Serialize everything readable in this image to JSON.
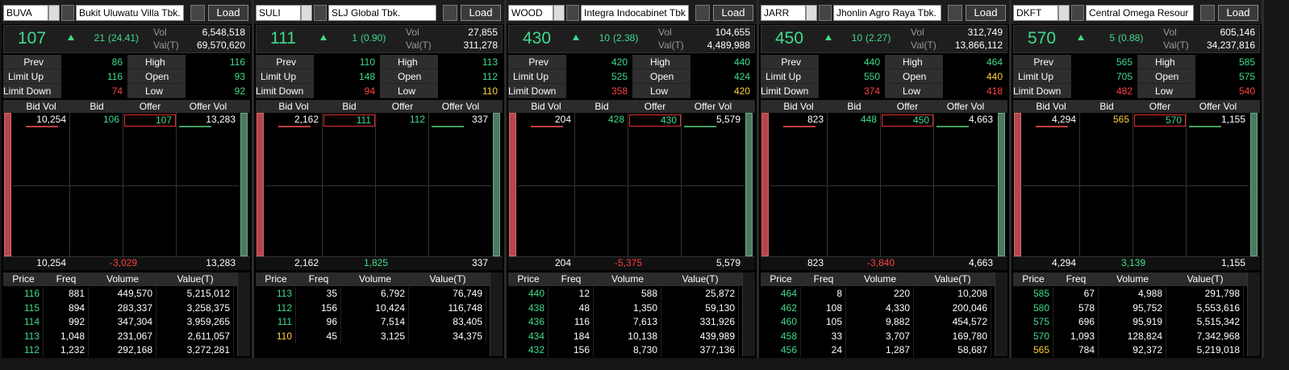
{
  "labels": {
    "load": "Load",
    "vol": "Vol",
    "val": "Val(T)",
    "prev": "Prev",
    "high": "High",
    "limit_up": "Limit Up",
    "open": "Open",
    "limit_down": "Limit Down",
    "low": "Low",
    "book_headers": [
      "Bid Vol",
      "Bid",
      "Offer",
      "Offer Vol"
    ],
    "trade_headers": [
      "Price",
      "Freq",
      "Volume",
      "Value(T)"
    ]
  },
  "panels": [
    {
      "code": "BUVA",
      "name": "Bukit Uluwatu Villa Tbk.",
      "last": "107",
      "change": "21",
      "change_pct": "(24.41)",
      "vol": "6,548,518",
      "val": "69,570,620",
      "prev": "86",
      "high": "116",
      "limit_up": "116",
      "open": "93",
      "limit_down": "74",
      "low": "92",
      "book": [
        "10,254",
        "106",
        "107",
        "13,283"
      ],
      "totals": [
        "10,254",
        "-3,029",
        "13,283"
      ],
      "trades": [
        [
          "116",
          "881",
          "449,570",
          "5,215,012"
        ],
        [
          "115",
          "894",
          "283,337",
          "3,258,375"
        ],
        [
          "114",
          "992",
          "347,304",
          "3,959,265"
        ],
        [
          "113",
          "1,048",
          "231,067",
          "2,611,057"
        ],
        [
          "112",
          "1,232",
          "292,168",
          "3,272,281"
        ]
      ]
    },
    {
      "code": "SULI",
      "name": "SLJ Global Tbk.",
      "last": "111",
      "change": "1",
      "change_pct": "(0.90)",
      "vol": "27,855",
      "val": "311,278",
      "prev": "110",
      "high": "113",
      "limit_up": "148",
      "open": "112",
      "limit_down": "94",
      "low": "110",
      "book": [
        "2,162",
        "111",
        "112",
        "337"
      ],
      "totals": [
        "2,162",
        "1,825",
        "337"
      ],
      "trades": [
        [
          "113",
          "35",
          "6,792",
          "76,749"
        ],
        [
          "112",
          "156",
          "10,424",
          "116,748"
        ],
        [
          "111",
          "96",
          "7,514",
          "83,405"
        ],
        [
          "110",
          "45",
          "3,125",
          "34,375"
        ]
      ]
    },
    {
      "code": "WOOD",
      "name": "Integra Indocabinet Tbk",
      "last": "430",
      "change": "10",
      "change_pct": "(2.38)",
      "vol": "104,655",
      "val": "4,489,988",
      "prev": "420",
      "high": "440",
      "limit_up": "525",
      "open": "424",
      "limit_down": "358",
      "low": "420",
      "book": [
        "204",
        "428",
        "430",
        "5,579"
      ],
      "totals": [
        "204",
        "-5,375",
        "5,579"
      ],
      "trades": [
        [
          "440",
          "12",
          "588",
          "25,872"
        ],
        [
          "438",
          "48",
          "1,350",
          "59,130"
        ],
        [
          "436",
          "116",
          "7,613",
          "331,926"
        ],
        [
          "434",
          "184",
          "10,138",
          "439,989"
        ],
        [
          "432",
          "156",
          "8,730",
          "377,136"
        ]
      ]
    },
    {
      "code": "JARR",
      "name": "Jhonlin Agro Raya Tbk.",
      "last": "450",
      "change": "10",
      "change_pct": "(2.27)",
      "vol": "312,749",
      "val": "13,866,112",
      "prev": "440",
      "high": "464",
      "limit_up": "550",
      "open": "440",
      "limit_down": "374",
      "low": "418",
      "book": [
        "823",
        "448",
        "450",
        "4,663"
      ],
      "totals": [
        "823",
        "-3,840",
        "4,663"
      ],
      "trades": [
        [
          "464",
          "8",
          "220",
          "10,208"
        ],
        [
          "462",
          "108",
          "4,330",
          "200,046"
        ],
        [
          "460",
          "105",
          "9,882",
          "454,572"
        ],
        [
          "458",
          "33",
          "3,707",
          "169,780"
        ],
        [
          "456",
          "24",
          "1,287",
          "58,687"
        ]
      ]
    },
    {
      "code": "DKFT",
      "name": "Central Omega Resour",
      "last": "570",
      "change": "5",
      "change_pct": "(0.88)",
      "vol": "605,146",
      "val": "34,237,816",
      "prev": "565",
      "high": "585",
      "limit_up": "705",
      "open": "575",
      "limit_down": "482",
      "low": "540",
      "book": [
        "4,294",
        "565",
        "570",
        "1,155"
      ],
      "totals": [
        "4,294",
        "3,139",
        "1,155"
      ],
      "trades": [
        [
          "585",
          "67",
          "4,988",
          "291,798"
        ],
        [
          "580",
          "578",
          "95,752",
          "5,553,616"
        ],
        [
          "575",
          "696",
          "95,919",
          "5,515,342"
        ],
        [
          "570",
          "1,093",
          "128,824",
          "7,342,968"
        ],
        [
          "565",
          "784",
          "92,372",
          "5,219,018"
        ]
      ]
    }
  ]
}
